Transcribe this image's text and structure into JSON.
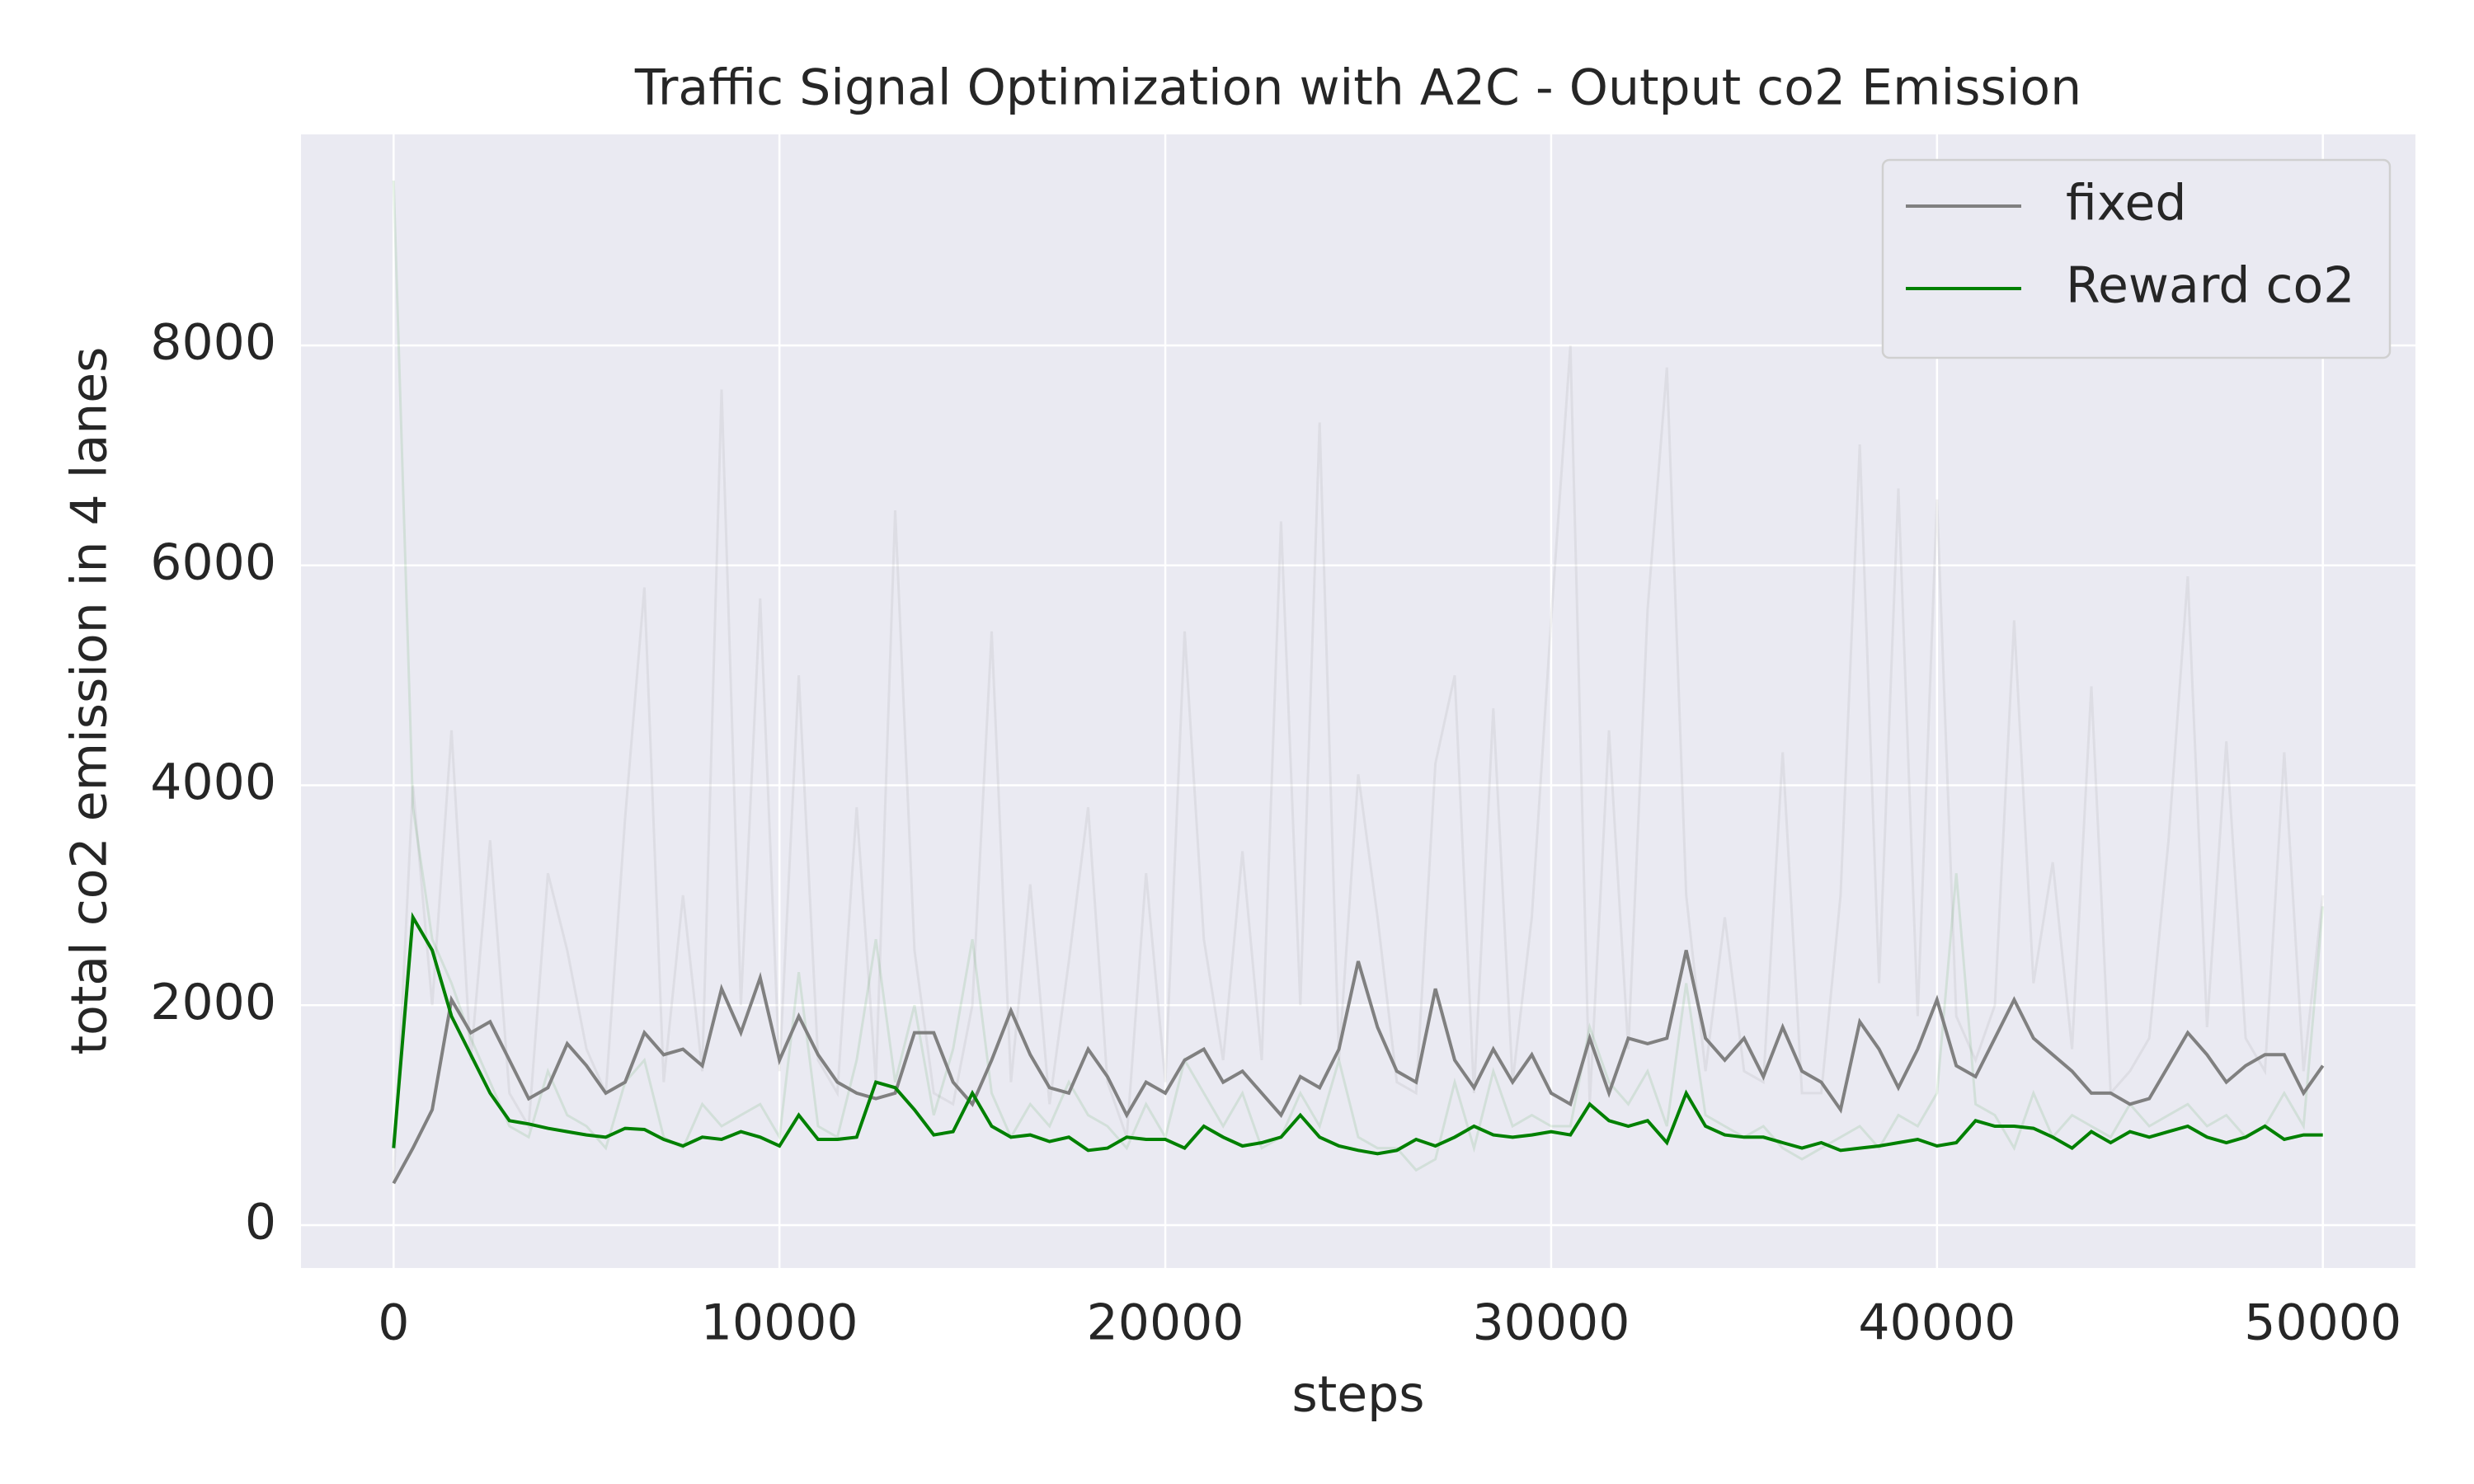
{
  "chart_data": {
    "type": "line",
    "title": "Traffic Signal Optimization with A2C - Output co2 Emission",
    "xlabel": "steps",
    "ylabel": "total co2 emission in 4 lanes",
    "x": [
      0,
      500,
      1000,
      1500,
      2000,
      2500,
      3000,
      3500,
      4000,
      4500,
      5000,
      5500,
      6000,
      6500,
      7000,
      7500,
      8000,
      8500,
      9000,
      9500,
      10000,
      10500,
      11000,
      11500,
      12000,
      12500,
      13000,
      13500,
      14000,
      14500,
      15000,
      15500,
      16000,
      16500,
      17000,
      17500,
      18000,
      18500,
      19000,
      19500,
      20000,
      20500,
      21000,
      21500,
      22000,
      22500,
      23000,
      23500,
      24000,
      24500,
      25000,
      25500,
      26000,
      26500,
      27000,
      27500,
      28000,
      28500,
      29000,
      29500,
      30000,
      30500,
      31000,
      31500,
      32000,
      32500,
      33000,
      33500,
      34000,
      34500,
      35000,
      35500,
      36000,
      36500,
      37000,
      37500,
      38000,
      38500,
      39000,
      39500,
      40000,
      40500,
      41000,
      41500,
      42000,
      42500,
      43000,
      43500,
      44000,
      44500,
      45000,
      45500,
      46000,
      46500,
      47000,
      47500,
      48000,
      48500,
      49000,
      49500,
      50000
    ],
    "series": [
      {
        "color": "#808080",
        "opacity": 0.12,
        "values": [
          400,
          4000,
          2000,
          4500,
          1500,
          3500,
          1200,
          900,
          3200,
          2500,
          1600,
          1200,
          3700,
          5800,
          1300,
          3000,
          1400,
          7600,
          2000,
          5700,
          1400,
          5000,
          1500,
          1200,
          3800,
          1300,
          6500,
          2500,
          1200,
          1100,
          2000,
          5400,
          1300,
          3100,
          1100,
          2400,
          3800,
          1300,
          800,
          3200,
          1300,
          5400,
          2600,
          1500,
          3400,
          1500,
          6400,
          2000,
          7300,
          1500,
          4100,
          2800,
          1300,
          1200,
          4200,
          5000,
          1200,
          4700,
          1300,
          2800,
          5500,
          8000,
          1100,
          4500,
          1600,
          5600,
          7800,
          3000,
          1400,
          2800,
          1400,
          1300,
          4300,
          1200,
          1200,
          3000,
          7100,
          2200,
          6700,
          1900,
          6600,
          1900,
          1500,
          2000,
          5500,
          2200,
          3300,
          1600,
          4900,
          1200,
          1400,
          1700,
          3500,
          5900,
          1800,
          4400,
          1700,
          1400,
          4300,
          1400,
          3000
        ]
      },
      {
        "color": "#008000",
        "opacity": 0.1,
        "values": [
          9500,
          3800,
          2600,
          2200,
          1700,
          1300,
          900,
          800,
          1400,
          1000,
          900,
          700,
          1300,
          1500,
          800,
          700,
          1100,
          900,
          1000,
          1100,
          800,
          2300,
          900,
          800,
          1500,
          2600,
          1300,
          2000,
          1000,
          1600,
          2600,
          1200,
          800,
          1100,
          900,
          1300,
          1000,
          900,
          700,
          1100,
          800,
          1500,
          1200,
          900,
          1200,
          700,
          800,
          1200,
          900,
          1500,
          800,
          700,
          700,
          500,
          600,
          1300,
          700,
          1400,
          900,
          1000,
          900,
          900,
          1800,
          1300,
          1100,
          1400,
          900,
          2200,
          1000,
          900,
          800,
          900,
          700,
          600,
          700,
          800,
          900,
          700,
          1000,
          900,
          1200,
          3200,
          1100,
          1000,
          700,
          1200,
          800,
          1000,
          900,
          800,
          1100,
          900,
          1000,
          1100,
          900,
          1000,
          800,
          900,
          1200,
          900,
          2900
        ]
      },
      {
        "name": "fixed",
        "color": "#808080",
        "opacity": 1,
        "values": [
          380,
          700,
          1050,
          2050,
          1750,
          1850,
          1500,
          1150,
          1250,
          1650,
          1450,
          1200,
          1300,
          1750,
          1550,
          1600,
          1450,
          2150,
          1750,
          2250,
          1500,
          1900,
          1550,
          1300,
          1200,
          1150,
          1200,
          1750,
          1750,
          1300,
          1100,
          1500,
          1950,
          1550,
          1250,
          1200,
          1600,
          1350,
          1000,
          1300,
          1200,
          1500,
          1600,
          1300,
          1400,
          1200,
          1000,
          1350,
          1250,
          1600,
          2400,
          1800,
          1400,
          1300,
          2150,
          1500,
          1250,
          1600,
          1300,
          1550,
          1200,
          1100,
          1700,
          1200,
          1700,
          1650,
          1700,
          2500,
          1700,
          1500,
          1700,
          1350,
          1800,
          1400,
          1300,
          1050,
          1850,
          1600,
          1250,
          1600,
          2050,
          1450,
          1350,
          1700,
          2050,
          1700,
          1550,
          1400,
          1200,
          1200,
          1100,
          1150,
          1450,
          1750,
          1550,
          1300,
          1450,
          1550,
          1550,
          1200,
          1450
        ]
      },
      {
        "name": "Reward co2",
        "color": "#008000",
        "opacity": 1,
        "values": [
          700,
          2800,
          2500,
          1900,
          1550,
          1200,
          950,
          920,
          880,
          850,
          820,
          800,
          880,
          870,
          780,
          720,
          800,
          780,
          850,
          800,
          720,
          1000,
          780,
          780,
          800,
          1300,
          1250,
          1050,
          820,
          850,
          1200,
          900,
          800,
          820,
          760,
          800,
          680,
          700,
          800,
          780,
          780,
          700,
          900,
          800,
          720,
          750,
          800,
          1000,
          800,
          720,
          680,
          650,
          680,
          780,
          720,
          800,
          900,
          820,
          800,
          820,
          850,
          820,
          1100,
          950,
          900,
          950,
          750,
          1200,
          900,
          820,
          800,
          800,
          750,
          700,
          750,
          680,
          700,
          720,
          750,
          780,
          720,
          750,
          950,
          900,
          900,
          880,
          800,
          700,
          850,
          750,
          850,
          800,
          850,
          900,
          800,
          750,
          800,
          900,
          780,
          820,
          820
        ]
      }
    ],
    "xlim": [
      -2400,
      52400
    ],
    "ylim": [
      -390,
      9920
    ],
    "xticks": [
      0,
      10000,
      20000,
      30000,
      40000,
      50000
    ],
    "yticks": [
      0,
      2000,
      4000,
      6000,
      8000
    ],
    "grid": true,
    "legend": "upper right"
  }
}
